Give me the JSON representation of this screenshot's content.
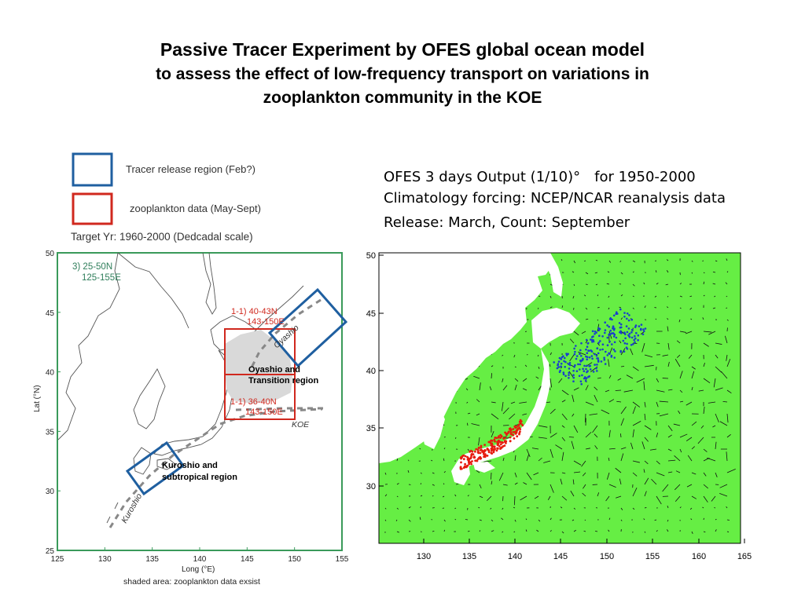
{
  "title": {
    "line1": "Passive Tracer Experiment by OFES global ocean model",
    "line2": "to assess the effect of low-frequency transport on variations in",
    "line3": "zooplankton community in the KOE"
  },
  "info": {
    "line1": "OFES 3 days Output (1/10)°　for 1950-2000",
    "line2": "Climatology forcing: NCEP/NCAR reanalysis data",
    "line3": "Release: March, Count: September"
  },
  "left_map": {
    "legend": {
      "tracer": "Tracer release region (Feb?)",
      "zooplankton": "zooplankton data (May-Sept)",
      "target": "Target Yr: 1960-2000 (Dedcadal scale)"
    },
    "region3": {
      "line1": "3)  25-50N",
      "line2": "125-155E"
    },
    "region_north": {
      "line1": "1-1) 40-43N",
      "line2": "143-150E"
    },
    "region_south": {
      "line1": "1-1) 36-40N",
      "line2": "143-150E"
    },
    "oyashio_region": {
      "line1": "Oyashio and",
      "line2": "Transition region"
    },
    "kuroshio_region": {
      "line1": "Kuroshio and",
      "line2": "subtropical region"
    },
    "current_labels": {
      "oyashio": "Oyashio",
      "koe": "KOE",
      "kuroshio": "Kuroshio"
    },
    "xlabel": "Long (°E)",
    "ylabel": "Lat (°N)",
    "xticks": [
      "125",
      "130",
      "135",
      "140",
      "145",
      "150",
      "155"
    ],
    "yticks": [
      "50",
      "45",
      "40",
      "35",
      "30",
      "25"
    ],
    "caption": "shaded area: zooplankton data exsist",
    "colors": {
      "frame": "#3a9a5a",
      "blue_box": "#1f5fa0",
      "red_box": "#d0281e",
      "shade": "#d9d9d9"
    }
  },
  "right_map": {
    "xticks": [
      "130",
      "135",
      "140",
      "145",
      "150",
      "155",
      "160",
      "165"
    ],
    "yticks": [
      "50",
      "45",
      "40",
      "35",
      "30"
    ],
    "colors": {
      "ocean": "#66ee44",
      "land": "#ffffff",
      "tracer_blue": "#1a3fcc",
      "tracer_red": "#e61b0e",
      "arrows": "#111111"
    }
  }
}
